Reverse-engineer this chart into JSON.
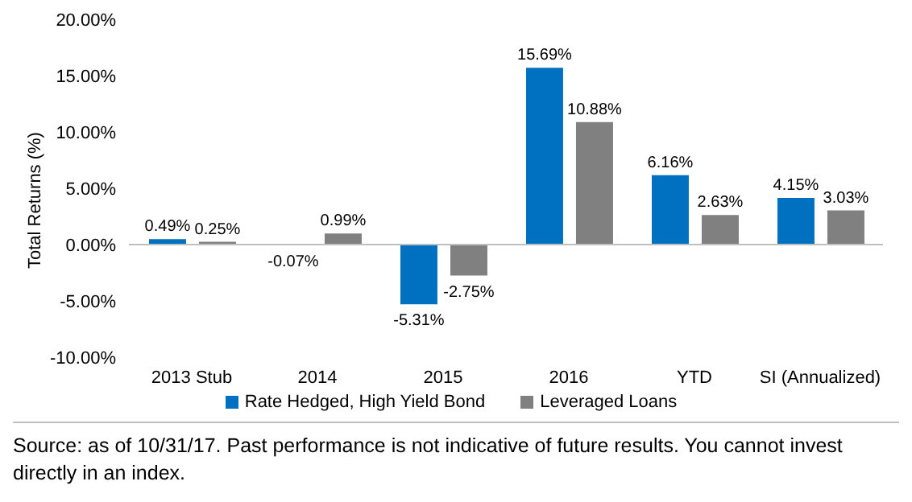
{
  "chart_data": {
    "type": "bar",
    "ylabel": "Total Returns (%)",
    "categories": [
      "2013 Stub",
      "2014",
      "2015",
      "2016",
      "YTD",
      "SI (Annualized)"
    ],
    "series": [
      {
        "name": "Rate Hedged, High Yield Bond",
        "color": "#0070c0",
        "values": [
          0.49,
          -0.07,
          -5.31,
          15.69,
          6.16,
          4.15
        ],
        "value_labels": [
          "0.49%",
          "-0.07%",
          "-5.31%",
          "15.69%",
          "6.16%",
          "4.15%"
        ]
      },
      {
        "name": "Leveraged Loans",
        "color": "#808080",
        "values": [
          0.25,
          0.99,
          -2.75,
          10.88,
          2.63,
          3.03
        ],
        "value_labels": [
          "0.25%",
          "0.99%",
          "-2.75%",
          "10.88%",
          "2.63%",
          "3.03%"
        ]
      }
    ],
    "ylim": [
      -10,
      20
    ],
    "yticks": [
      {
        "value": -10,
        "label": "-10.00%"
      },
      {
        "value": -5,
        "label": "-5.00%"
      },
      {
        "value": 0,
        "label": "0.00%"
      },
      {
        "value": 5,
        "label": "5.00%"
      },
      {
        "value": 10,
        "label": "10.00%"
      },
      {
        "value": 15,
        "label": "15.00%"
      },
      {
        "value": 20,
        "label": "20.00%"
      }
    ],
    "ref_lines": [
      {
        "axis": "y",
        "value": 0,
        "color": "#bfbfbf"
      }
    ],
    "grid": false,
    "legend": "bottom",
    "annotations": [
      "Source: as of 10/31/17. Past performance is not indicative of future results. You cannot invest directly in an index."
    ]
  }
}
